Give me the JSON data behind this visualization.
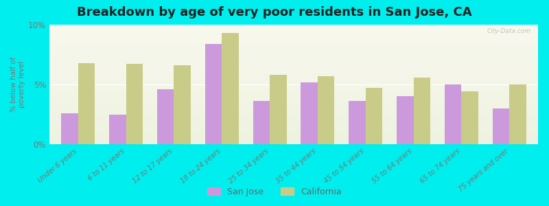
{
  "title": "Breakdown by age of very poor residents in San Jose, CA",
  "ylabel": "% below half of\npoverty level",
  "categories": [
    "Under 6 years",
    "6 to 11 years",
    "12 to 17 years",
    "18 to 24 years",
    "25 to 34 years",
    "35 to 44 years",
    "45 to 54 years",
    "55 to 64 years",
    "65 to 74 years",
    "75 years and over"
  ],
  "san_jose": [
    2.6,
    2.5,
    4.6,
    8.4,
    3.6,
    5.2,
    3.6,
    4.0,
    5.0,
    3.0
  ],
  "california": [
    6.8,
    6.7,
    6.6,
    9.3,
    5.8,
    5.7,
    4.7,
    5.6,
    4.4,
    5.0
  ],
  "bar_color_sj": "#cc99dd",
  "bar_color_ca": "#c8cc88",
  "background_color": "#00eeee",
  "plot_bg_top": "#eef2e0",
  "plot_bg_bottom": "#f8f8ee",
  "ylim": [
    0,
    10
  ],
  "yticks": [
    0,
    5,
    10
  ],
  "ytick_labels": [
    "0%",
    "5%",
    "10%"
  ],
  "legend_sj": "San Jose",
  "legend_ca": "California",
  "title_fontsize": 13,
  "bar_width": 0.35
}
